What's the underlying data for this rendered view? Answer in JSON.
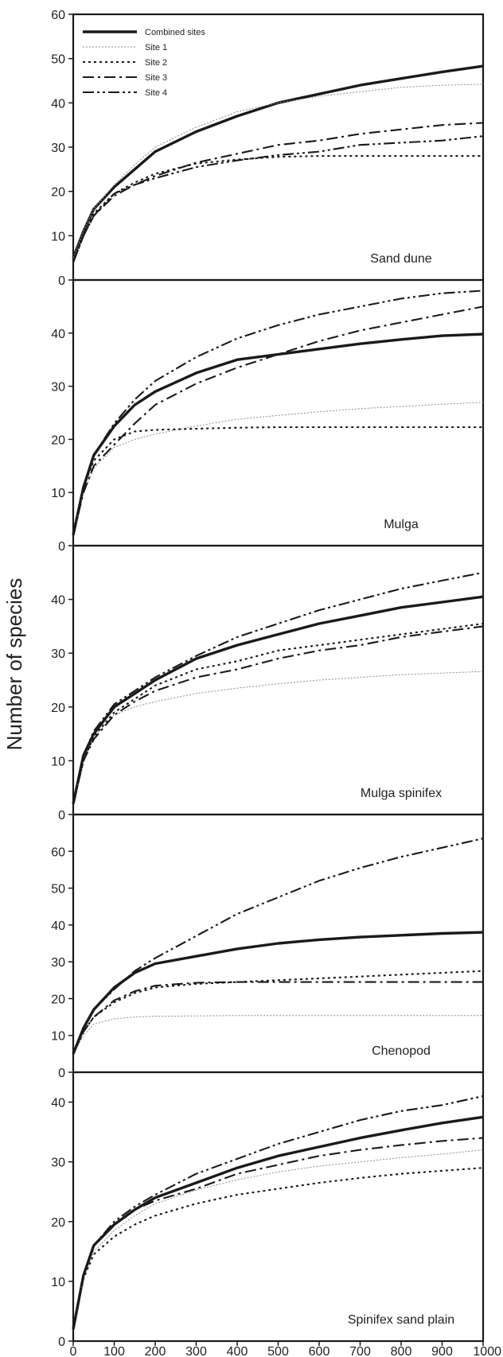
{
  "ylabel": "Number of species",
  "legend": {
    "entries": [
      {
        "name": "Combined sites",
        "style": "combined"
      },
      {
        "name": "Site 1",
        "style": "site1"
      },
      {
        "name": "Site 2",
        "style": "site2"
      },
      {
        "name": "Site 3",
        "style": "site3"
      },
      {
        "name": "Site 4",
        "style": "site4"
      }
    ],
    "placement": "top-left of first panel"
  },
  "styles": {
    "combined": {
      "color": "#1a1a1a",
      "dash": "",
      "weight": "heavy"
    },
    "site1": {
      "color": "#8a8a8a",
      "dash": "2,2",
      "weight": "hairline"
    },
    "site2": {
      "color": "#1a1a1a",
      "dash": "3,4",
      "weight": "medium"
    },
    "site3": {
      "color": "#1a1a1a",
      "dash": "14,5,3,5",
      "weight": "medium"
    },
    "site4": {
      "color": "#1a1a1a",
      "dash": "14,4,3,4,3,4",
      "weight": "medium"
    }
  },
  "chart_data": [
    {
      "type": "line",
      "panel_label": "Sand dune",
      "xlim": [
        0,
        1000
      ],
      "ylim": [
        0,
        60
      ],
      "yticks": [
        0,
        10,
        20,
        30,
        40,
        50,
        60
      ],
      "x": [
        0,
        25,
        50,
        100,
        150,
        200,
        300,
        400,
        500,
        600,
        700,
        800,
        900,
        1000
      ],
      "series": [
        {
          "name": "Combined sites",
          "style": "combined",
          "values": [
            5,
            11,
            16,
            21,
            25,
            29,
            33.5,
            37,
            40,
            42,
            44,
            45.5,
            47,
            48.3
          ]
        },
        {
          "name": "Site 1",
          "style": "site1",
          "values": [
            5,
            11,
            16,
            21.5,
            26,
            30,
            34.5,
            38,
            40,
            41.5,
            42.5,
            43.5,
            44,
            44.2
          ]
        },
        {
          "name": "Site 2",
          "style": "site2",
          "values": [
            4,
            10,
            15,
            19.5,
            22,
            24,
            26.3,
            27.2,
            27.8,
            28,
            28,
            28,
            28,
            28
          ]
        },
        {
          "name": "Site 3",
          "style": "site3",
          "values": [
            4,
            10,
            14.5,
            19,
            21.5,
            23.5,
            26.5,
            28.5,
            30.5,
            31.5,
            33,
            34,
            35,
            35.5
          ]
        },
        {
          "name": "Site 4",
          "style": "site4",
          "values": [
            4,
            10,
            14.5,
            19.5,
            21.5,
            23,
            25.5,
            27,
            28.2,
            29,
            30.5,
            31,
            31.5,
            32.5
          ]
        }
      ]
    },
    {
      "type": "line",
      "panel_label": "Mulga",
      "xlim": [
        0,
        1000
      ],
      "ylim": [
        0,
        50
      ],
      "yticks": [
        0,
        10,
        20,
        30,
        40
      ],
      "x": [
        0,
        25,
        50,
        100,
        150,
        200,
        300,
        400,
        500,
        600,
        700,
        800,
        900,
        1000
      ],
      "series": [
        {
          "name": "Combined sites",
          "style": "combined",
          "values": [
            2,
            11,
            17,
            22.5,
            26.5,
            29,
            32.5,
            35,
            36,
            37,
            38,
            38.8,
            39.5,
            39.8
          ]
        },
        {
          "name": "Site 1",
          "style": "site1",
          "values": [
            2,
            10,
            14.5,
            18.5,
            20,
            21,
            22.5,
            23.8,
            24.5,
            25.2,
            25.8,
            26.2,
            26.6,
            27
          ]
        },
        {
          "name": "Site 2",
          "style": "site2",
          "values": [
            2,
            11,
            16,
            20,
            21.5,
            21.8,
            22,
            22.2,
            22.3,
            22.3,
            22.3,
            22.3,
            22.3,
            22.3
          ]
        },
        {
          "name": "Site 3",
          "style": "site3",
          "values": [
            2,
            10,
            15,
            19,
            23,
            26.5,
            30.5,
            33.5,
            36,
            38.5,
            40.5,
            42,
            43.5,
            45
          ]
        },
        {
          "name": "Site 4",
          "style": "site4",
          "values": [
            2,
            11,
            17,
            23,
            27.5,
            31,
            35.5,
            39,
            41.5,
            43.5,
            45,
            46.5,
            47.5,
            48
          ]
        }
      ]
    },
    {
      "type": "line",
      "panel_label": "Mulga spinifex",
      "xlim": [
        0,
        1000
      ],
      "ylim": [
        0,
        50
      ],
      "yticks": [
        0,
        10,
        20,
        30,
        40
      ],
      "x": [
        0,
        25,
        50,
        100,
        150,
        200,
        300,
        400,
        500,
        600,
        700,
        800,
        900,
        1000
      ],
      "series": [
        {
          "name": "Combined sites",
          "style": "combined",
          "values": [
            2,
            11,
            15,
            20,
            22.5,
            25,
            29,
            31.5,
            33.5,
            35.5,
            37,
            38.5,
            39.5,
            40.5
          ]
        },
        {
          "name": "Site 1",
          "style": "site1",
          "values": [
            2,
            10,
            14.5,
            18.5,
            20,
            21,
            22.5,
            23.5,
            24.3,
            25,
            25.5,
            26,
            26.3,
            26.6
          ]
        },
        {
          "name": "Site 2",
          "style": "site2",
          "values": [
            2,
            10,
            14.5,
            19,
            21.5,
            24,
            27,
            28.5,
            30.5,
            31.5,
            32.5,
            33.5,
            34.5,
            35.5
          ]
        },
        {
          "name": "Site 3",
          "style": "site3",
          "values": [
            2,
            10,
            14,
            18.5,
            21,
            23,
            25.5,
            27,
            29,
            30.5,
            31.5,
            33,
            34,
            35
          ]
        },
        {
          "name": "Site 4",
          "style": "site4",
          "values": [
            2,
            11,
            15.5,
            20.5,
            23,
            25.5,
            29.5,
            33,
            35.5,
            38,
            40,
            42,
            43.5,
            45
          ]
        }
      ]
    },
    {
      "type": "line",
      "panel_label": "Chenopod",
      "xlim": [
        0,
        1000
      ],
      "ylim": [
        0,
        70
      ],
      "yticks": [
        0,
        10,
        20,
        30,
        40,
        50,
        60
      ],
      "x": [
        0,
        25,
        50,
        100,
        150,
        200,
        300,
        400,
        500,
        600,
        700,
        800,
        900,
        1000
      ],
      "series": [
        {
          "name": "Combined sites",
          "style": "combined",
          "values": [
            5,
            12,
            17,
            23,
            27,
            29.5,
            31.5,
            33.5,
            35,
            36,
            36.7,
            37.2,
            37.7,
            38
          ]
        },
        {
          "name": "Site 1",
          "style": "site1",
          "values": [
            5,
            10,
            13,
            14.5,
            15,
            15.2,
            15.3,
            15.4,
            15.4,
            15.4,
            15.4,
            15.4,
            15.4,
            15.4
          ]
        },
        {
          "name": "Site 2",
          "style": "site2",
          "values": [
            5,
            11,
            15,
            19,
            21.5,
            23,
            24,
            24.5,
            25,
            25.5,
            26,
            26.5,
            27,
            27.5
          ]
        },
        {
          "name": "Site 3",
          "style": "site3",
          "values": [
            5,
            11,
            15,
            19.5,
            22,
            23.5,
            24.3,
            24.5,
            24.5,
            24.5,
            24.5,
            24.5,
            24.5,
            24.5
          ]
        },
        {
          "name": "Site 4",
          "style": "site4",
          "values": [
            5,
            12,
            17,
            22.5,
            27.5,
            31,
            37,
            43,
            47.5,
            52,
            55.5,
            58.5,
            61,
            63.5
          ]
        }
      ]
    },
    {
      "type": "line",
      "panel_label": "Spinifex sand plain",
      "xlim": [
        0,
        1000
      ],
      "ylim": [
        0,
        45
      ],
      "yticks": [
        0,
        10,
        20,
        30,
        40
      ],
      "x": [
        0,
        25,
        50,
        100,
        150,
        200,
        300,
        400,
        500,
        600,
        700,
        800,
        900,
        1000
      ],
      "series": [
        {
          "name": "Combined sites",
          "style": "combined",
          "values": [
            2,
            11,
            16,
            19.5,
            22,
            24,
            26.5,
            29,
            31,
            32.5,
            34,
            35.3,
            36.5,
            37.5
          ]
        },
        {
          "name": "Site 1",
          "style": "site1",
          "values": [
            2,
            10.5,
            15,
            18.5,
            21,
            23,
            25.3,
            27,
            28.3,
            29.3,
            30,
            30.7,
            31.3,
            32
          ]
        },
        {
          "name": "Site 2",
          "style": "site2",
          "values": [
            2,
            10.5,
            14.5,
            17.5,
            19.5,
            21,
            23,
            24.5,
            25.5,
            26.5,
            27.3,
            28,
            28.5,
            29
          ]
        },
        {
          "name": "Site 3",
          "style": "site3",
          "values": [
            2,
            11,
            16,
            19.5,
            22,
            23.5,
            25.5,
            28,
            29.5,
            31,
            32,
            32.8,
            33.5,
            34
          ]
        },
        {
          "name": "Site 4",
          "style": "site4",
          "values": [
            2,
            11,
            16,
            20,
            22.5,
            24.5,
            28,
            30.5,
            33,
            35,
            37,
            38.5,
            39.5,
            41
          ]
        }
      ]
    }
  ],
  "xticks": [
    0,
    100,
    200,
    300,
    400,
    500,
    600,
    700,
    800,
    900,
    1000
  ]
}
